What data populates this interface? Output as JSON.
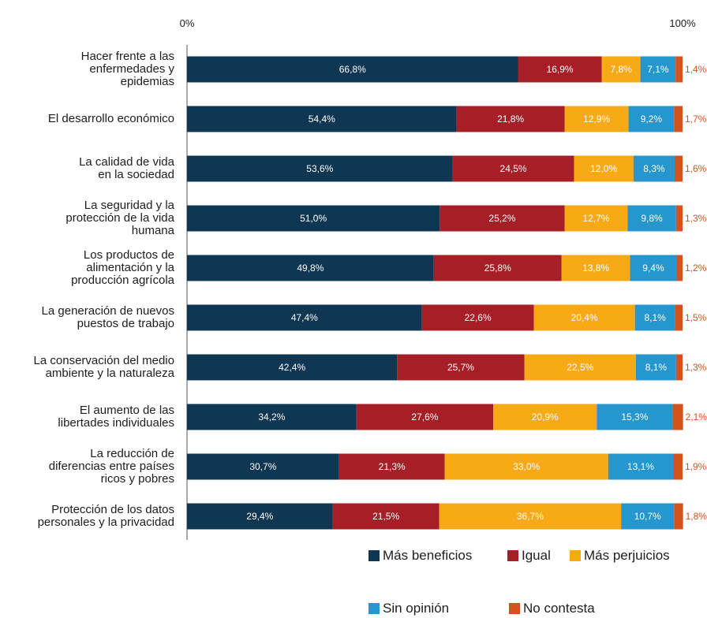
{
  "chart_data": {
    "type": "stacked-barh",
    "categories": [
      "Hacer frente a las\nenfermedades y\nepidemias",
      "El desarrollo económico",
      "La calidad de vida\nen la sociedad",
      "La seguridad y la\nprotección de la vida\nhumana",
      "Los productos de\nalimentación y la\nproducción agrícola",
      "La generación de nuevos\npuestos de trabajo",
      "La conservación del medio\nambiente y la naturaleza",
      "El aumento de las\nlibertades individuales",
      "La reducción de\ndiferencias entre países\nricos y pobres",
      "Protección de los datos\npersonales y la privacidad"
    ],
    "series": [
      {
        "name": "Más beneficios",
        "color": "#0f3652",
        "values": [
          66.8,
          54.4,
          53.6,
          51.0,
          49.8,
          47.4,
          42.4,
          34.2,
          30.7,
          29.4
        ],
        "value_labels": [
          "66,8%",
          "54,4%",
          "53,6%",
          "51,0%",
          "49,8%",
          "47,4%",
          "42,4%",
          "34,2%",
          "30,7%",
          "29,4%"
        ]
      },
      {
        "name": "Igual",
        "color": "#a61e26",
        "values": [
          16.9,
          21.8,
          24.5,
          25.2,
          25.8,
          22.6,
          25.7,
          27.6,
          21.3,
          21.5
        ],
        "value_labels": [
          "16,9%",
          "21,8%",
          "24,5%",
          "25,2%",
          "25,8%",
          "22,6%",
          "25,7%",
          "27,6%",
          "21,3%",
          "21,5%"
        ]
      },
      {
        "name": "Más perjuicios",
        "color": "#f8a916",
        "values": [
          7.8,
          12.9,
          12.0,
          12.7,
          13.8,
          20.4,
          22.5,
          20.9,
          33.0,
          36.7
        ],
        "value_labels": [
          "7,8%",
          "12,9%",
          "12,0%",
          "12,7%",
          "13,8%",
          "20,4%",
          "22,5%",
          "20,9%",
          "33,0%",
          "36,7%"
        ]
      },
      {
        "name": "Sin opinión",
        "color": "#2696cf",
        "values": [
          7.1,
          9.2,
          8.3,
          9.8,
          9.4,
          8.1,
          8.1,
          15.3,
          13.1,
          10.7
        ],
        "value_labels": [
          "7,1%",
          "9,2%",
          "8,3%",
          "9,8%",
          "9,4%",
          "8,1%",
          "8,1%",
          "15,3%",
          "13,1%",
          "10,7%"
        ]
      },
      {
        "name": "No contesta",
        "color": "#d4521d",
        "values": [
          1.4,
          1.7,
          1.6,
          1.3,
          1.2,
          1.5,
          1.3,
          2.1,
          1.9,
          1.8
        ],
        "value_labels": [
          "1,4%",
          "1,7%",
          "1,6%",
          "1,3%",
          "1,2%",
          "1,5%",
          "1,3%",
          "2,1%",
          "1,9%",
          "1,8%"
        ]
      }
    ],
    "xlim": [
      0,
      100
    ],
    "xticks": [
      {
        "value": 0,
        "label": "0%"
      },
      {
        "value": 100,
        "label": "100%"
      }
    ],
    "legend": "bottom-right"
  }
}
